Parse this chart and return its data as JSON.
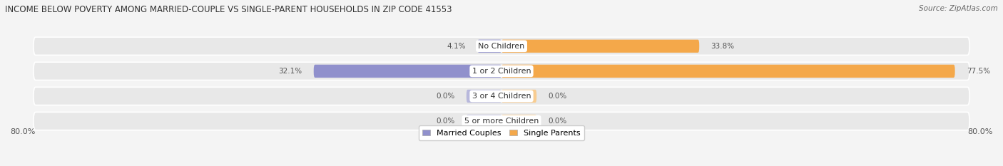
{
  "title": "INCOME BELOW POVERTY AMONG MARRIED-COUPLE VS SINGLE-PARENT HOUSEHOLDS IN ZIP CODE 41553",
  "source": "Source: ZipAtlas.com",
  "categories": [
    "No Children",
    "1 or 2 Children",
    "3 or 4 Children",
    "5 or more Children"
  ],
  "married_values": [
    4.1,
    32.1,
    0.0,
    0.0
  ],
  "single_values": [
    33.8,
    77.5,
    0.0,
    0.0
  ],
  "married_color": "#9090cc",
  "single_color": "#f4a84a",
  "married_color_zero": "#b8b8dc",
  "single_color_zero": "#f8cc90",
  "axis_min": -80.0,
  "axis_max": 80.0,
  "axis_label_left": "80.0%",
  "axis_label_right": "80.0%",
  "background_color": "#f4f4f4",
  "row_bg_color": "#e8e8e8",
  "title_fontsize": 8.5,
  "bar_label_fontsize": 7.5,
  "category_fontsize": 8,
  "legend_married": "Married Couples",
  "legend_single": "Single Parents",
  "zero_stub": 6.0
}
